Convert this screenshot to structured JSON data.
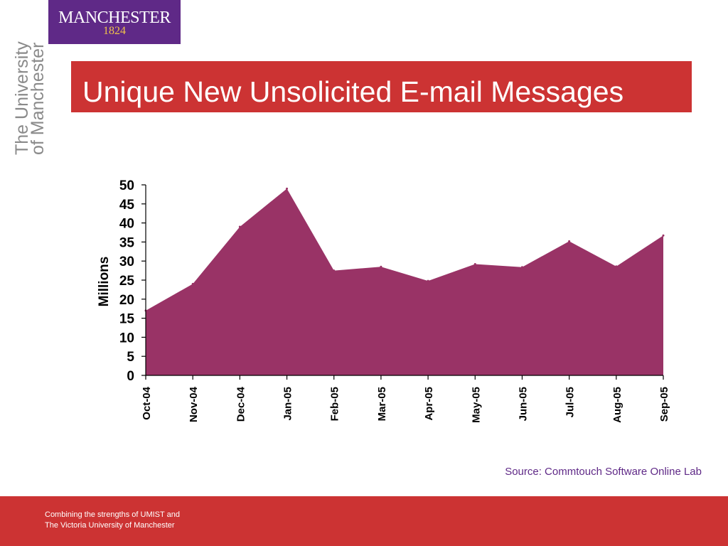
{
  "logo": {
    "word": "MANCHESTER",
    "year": "1824"
  },
  "side_wordmark": {
    "line1": "The University",
    "line2": "of Manchester"
  },
  "title": "Unique New Unsolicited E-mail Messages",
  "source": "Source:  Commtouch Software Online Lab",
  "footer": {
    "line1": "Combining the strengths of UMIST and",
    "line2": "The Victoria University of Manchester"
  },
  "colors": {
    "title_bar": "#cc3333",
    "logo_bg": "#5f2987",
    "area_fill": "#993366",
    "footer_bar": "#cc3333",
    "source_text": "#5f2987"
  },
  "chart_data": {
    "type": "area",
    "categories": [
      "Oct-04",
      "Nov-04",
      "Dec-04",
      "Jan-05",
      "Feb-05",
      "Mar-05",
      "Apr-05",
      "May-05",
      "Jun-05",
      "Jul-05",
      "Aug-05",
      "Sep-05"
    ],
    "values": [
      17,
      24,
      39,
      49,
      27.5,
      28.5,
      24.8,
      29.2,
      28.4,
      35.2,
      28.6,
      36.7
    ],
    "ylabel": "Millions",
    "ylim": [
      0,
      50
    ],
    "yticks": [
      0,
      5,
      10,
      15,
      20,
      25,
      30,
      35,
      40,
      45,
      50
    ],
    "grid": false,
    "legend": "none"
  }
}
